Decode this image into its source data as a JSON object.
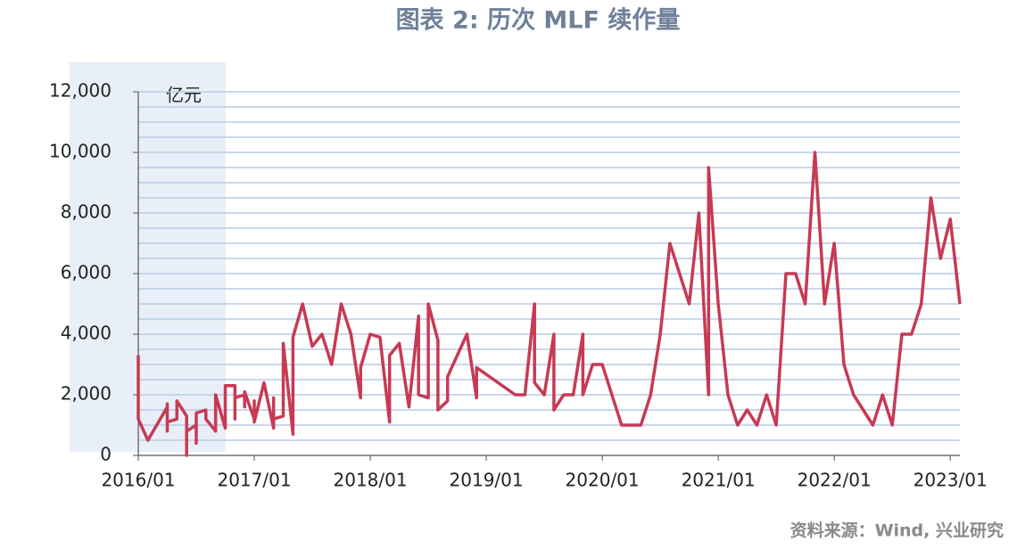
{
  "chart_data": {
    "type": "line",
    "title": "图表 2:   历次 MLF 续作量",
    "unit_label": "亿元",
    "source": "资料来源：Wind, 兴业研究",
    "xlim": [
      "2016/01",
      "2023/02"
    ],
    "xticks": [
      "2016/01",
      "2017/01",
      "2018/01",
      "2019/01",
      "2020/01",
      "2021/01",
      "2022/01",
      "2023/01"
    ],
    "ylim": [
      0,
      12000
    ],
    "yticks": [
      0,
      {
        "value": 2000,
        "label": "2,000"
      },
      {
        "value": 4000,
        "label": "4,000"
      },
      {
        "value": 6000,
        "label": "6,000"
      },
      {
        "value": 8000,
        "label": "8,000"
      },
      {
        "value": 10000,
        "label": "10,000"
      },
      {
        "value": 12000,
        "label": "12,000"
      }
    ],
    "ygrid": [
      500,
      1000,
      1500,
      2000,
      2500,
      3000,
      3500,
      4000,
      4500,
      5000,
      5500,
      6000,
      6500,
      7000,
      7500,
      8000,
      8500,
      9000,
      9500,
      10000,
      10500,
      11000,
      11500,
      12000
    ],
    "grid": true,
    "x": [
      "2016/01",
      "2016/01",
      "2016/02",
      "2016/04",
      "2016/04",
      "2016/04",
      "2016/04",
      "2016/05",
      "2016/05",
      "2016/06",
      "2016/06",
      "2016/06",
      "2016/07",
      "2016/07",
      "2016/07",
      "2016/08",
      "2016/08",
      "2016/09",
      "2016/09",
      "2016/10",
      "2016/10",
      "2016/11",
      "2016/11",
      "2016/11",
      "2016/12",
      "2016/12",
      "2016/12",
      "2017/01",
      "2017/01",
      "2017/01",
      "2017/02",
      "2017/03",
      "2017/03",
      "2017/03",
      "2017/04",
      "2017/04",
      "2017/05",
      "2017/05",
      "2017/06",
      "2017/07",
      "2017/08",
      "2017/09",
      "2017/10",
      "2017/11",
      "2017/12",
      "2017/12",
      "2018/01",
      "2018/02",
      "2018/03",
      "2018/03",
      "2018/04",
      "2018/05",
      "2018/06",
      "2018/06",
      "2018/07",
      "2018/07",
      "2018/08",
      "2018/08",
      "2018/09",
      "2018/09",
      "2018/11",
      "2018/12",
      "2018/12",
      "2019/04",
      "2019/05",
      "2019/06",
      "2019/06",
      "2019/07",
      "2019/08",
      "2019/08",
      "2019/09",
      "2019/10",
      "2019/11",
      "2019/11",
      "2019/12",
      "2020/01",
      "2020/02",
      "2020/03",
      "2020/05",
      "2020/06",
      "2020/07",
      "2020/08",
      "2020/10",
      "2020/11",
      "2020/12",
      "2020/12",
      "2021/01",
      "2021/02",
      "2021/03",
      "2021/04",
      "2021/05",
      "2021/06",
      "2021/07",
      "2021/08",
      "2021/09",
      "2021/10",
      "2021/11",
      "2021/12",
      "2022/01",
      "2022/02",
      "2022/03",
      "2022/05",
      "2022/06",
      "2022/07",
      "2022/08",
      "2022/09",
      "2022/10",
      "2022/11",
      "2022/12",
      "2023/01",
      "2023/02"
    ],
    "series": [
      {
        "name": "MLF续作量",
        "color": "#c73a54",
        "values": [
          3300,
          1200,
          500,
          1600,
          800,
          1700,
          1100,
          1200,
          1800,
          1300,
          0,
          800,
          1000,
          400,
          1400,
          1500,
          1200,
          800,
          2000,
          900,
          2300,
          2300,
          1200,
          1900,
          2000,
          1600,
          2100,
          1200,
          1800,
          1100,
          2400,
          900,
          1900,
          1200,
          1300,
          3700,
          700,
          3900,
          5000,
          3600,
          4000,
          3000,
          5000,
          4000,
          1900,
          2900,
          4000,
          3900,
          1100,
          3300,
          3700,
          1600,
          4600,
          2000,
          1900,
          5000,
          3800,
          1500,
          1800,
          2600,
          4000,
          1900,
          2900,
          2000,
          2000,
          5000,
          2400,
          2000,
          4000,
          1500,
          2000,
          2000,
          4000,
          2000,
          3000,
          3000,
          2000,
          1000,
          1000,
          2000,
          4000,
          7000,
          5000,
          8000,
          2000,
          9500,
          5000,
          2000,
          1000,
          1500,
          1000,
          2000,
          1000,
          6000,
          6000,
          5000,
          10000,
          5000,
          7000,
          3000,
          2000,
          1000,
          2000,
          1000,
          4000,
          4000,
          5000,
          8500,
          6500,
          7800,
          5000
        ]
      }
    ]
  }
}
